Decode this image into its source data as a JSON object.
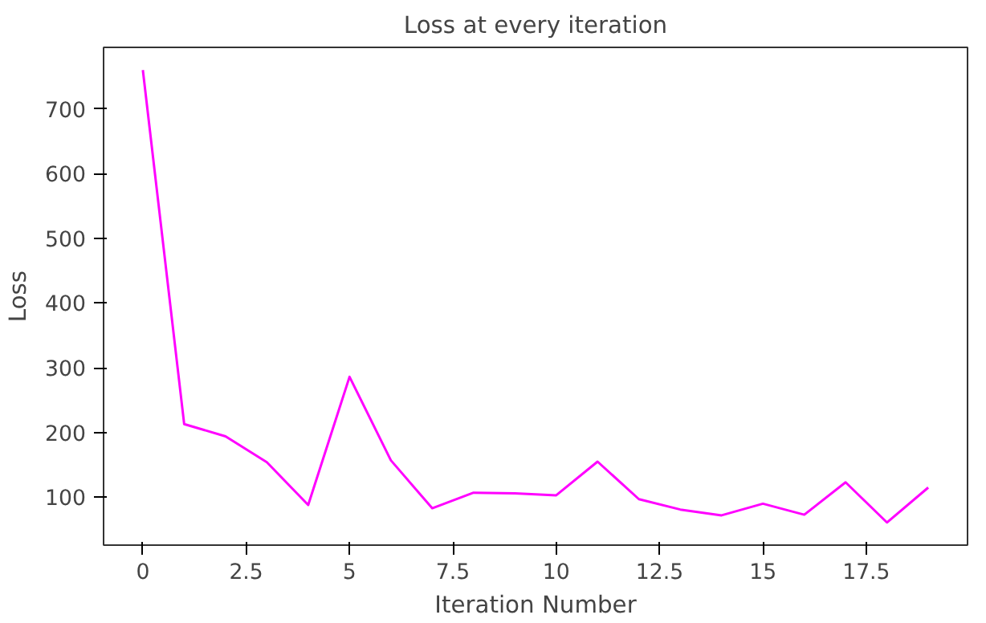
{
  "chart_data": {
    "type": "line",
    "title": "Loss at every iteration",
    "xlabel": "Iteration Number",
    "ylabel": "Loss",
    "x": [
      0,
      1,
      2,
      3,
      4,
      5,
      6,
      7,
      8,
      9,
      10,
      11,
      12,
      13,
      14,
      15,
      16,
      17,
      18,
      19
    ],
    "series": [
      {
        "color": "#ff00ff",
        "values": [
          760,
          213,
          194,
          154,
          88,
          286,
          157,
          83,
          107,
          106,
          103,
          155,
          97,
          81,
          72,
          90,
          73,
          123,
          61,
          115
        ]
      }
    ],
    "xlim": [
      -0.95,
      19.95
    ],
    "ylim": [
      26,
      795
    ],
    "xticks": [
      0,
      2.5,
      5,
      7.5,
      10,
      12.5,
      15,
      17.5
    ],
    "yticks": [
      100,
      200,
      300,
      400,
      500,
      600,
      700
    ],
    "grid": false
  }
}
